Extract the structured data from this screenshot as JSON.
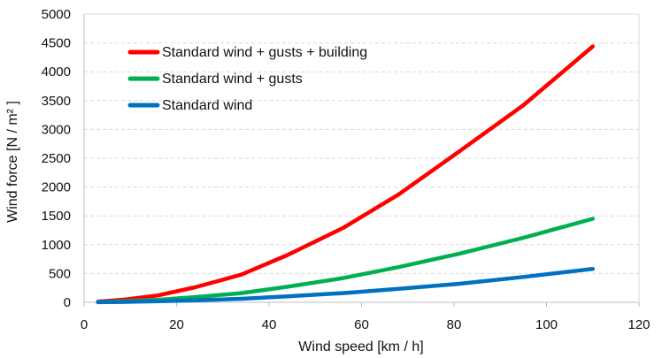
{
  "chart_data": {
    "type": "line",
    "title": "",
    "xlabel": "Wind speed [km / h]",
    "ylabel": "Wind force [N / m² ]",
    "xlim": [
      0,
      120
    ],
    "ylim": [
      0,
      5000
    ],
    "x_ticks": [
      "0",
      "20",
      "40",
      "60",
      "80",
      "100",
      "120"
    ],
    "y_ticks": [
      "0",
      "500",
      "1000",
      "1500",
      "2000",
      "2500",
      "3000",
      "3500",
      "4000",
      "4500",
      "5000"
    ],
    "grid": "horizontal dashed",
    "legend_position": "top-left",
    "series": [
      {
        "name": "Standard wind + gusts + building",
        "color": "#FF0000",
        "points": [
          [
            3,
            10
          ],
          [
            9,
            50
          ],
          [
            16,
            120
          ],
          [
            24,
            260
          ],
          [
            34,
            480
          ],
          [
            44,
            820
          ],
          [
            56,
            1290
          ],
          [
            68,
            1870
          ],
          [
            81,
            2610
          ],
          [
            95,
            3420
          ],
          [
            110,
            4440
          ]
        ]
      },
      {
        "name": "Standard wind + gusts",
        "color": "#00B050",
        "points": [
          [
            3,
            5
          ],
          [
            9,
            20
          ],
          [
            16,
            45
          ],
          [
            24,
            90
          ],
          [
            34,
            160
          ],
          [
            44,
            270
          ],
          [
            56,
            420
          ],
          [
            68,
            610
          ],
          [
            81,
            840
          ],
          [
            95,
            1120
          ],
          [
            110,
            1450
          ]
        ]
      },
      {
        "name": "Standard wind",
        "color": "#0070C0",
        "points": [
          [
            3,
            2
          ],
          [
            9,
            8
          ],
          [
            16,
            18
          ],
          [
            24,
            35
          ],
          [
            34,
            62
          ],
          [
            44,
            105
          ],
          [
            56,
            160
          ],
          [
            68,
            235
          ],
          [
            81,
            320
          ],
          [
            95,
            440
          ],
          [
            110,
            580
          ]
        ]
      }
    ]
  }
}
